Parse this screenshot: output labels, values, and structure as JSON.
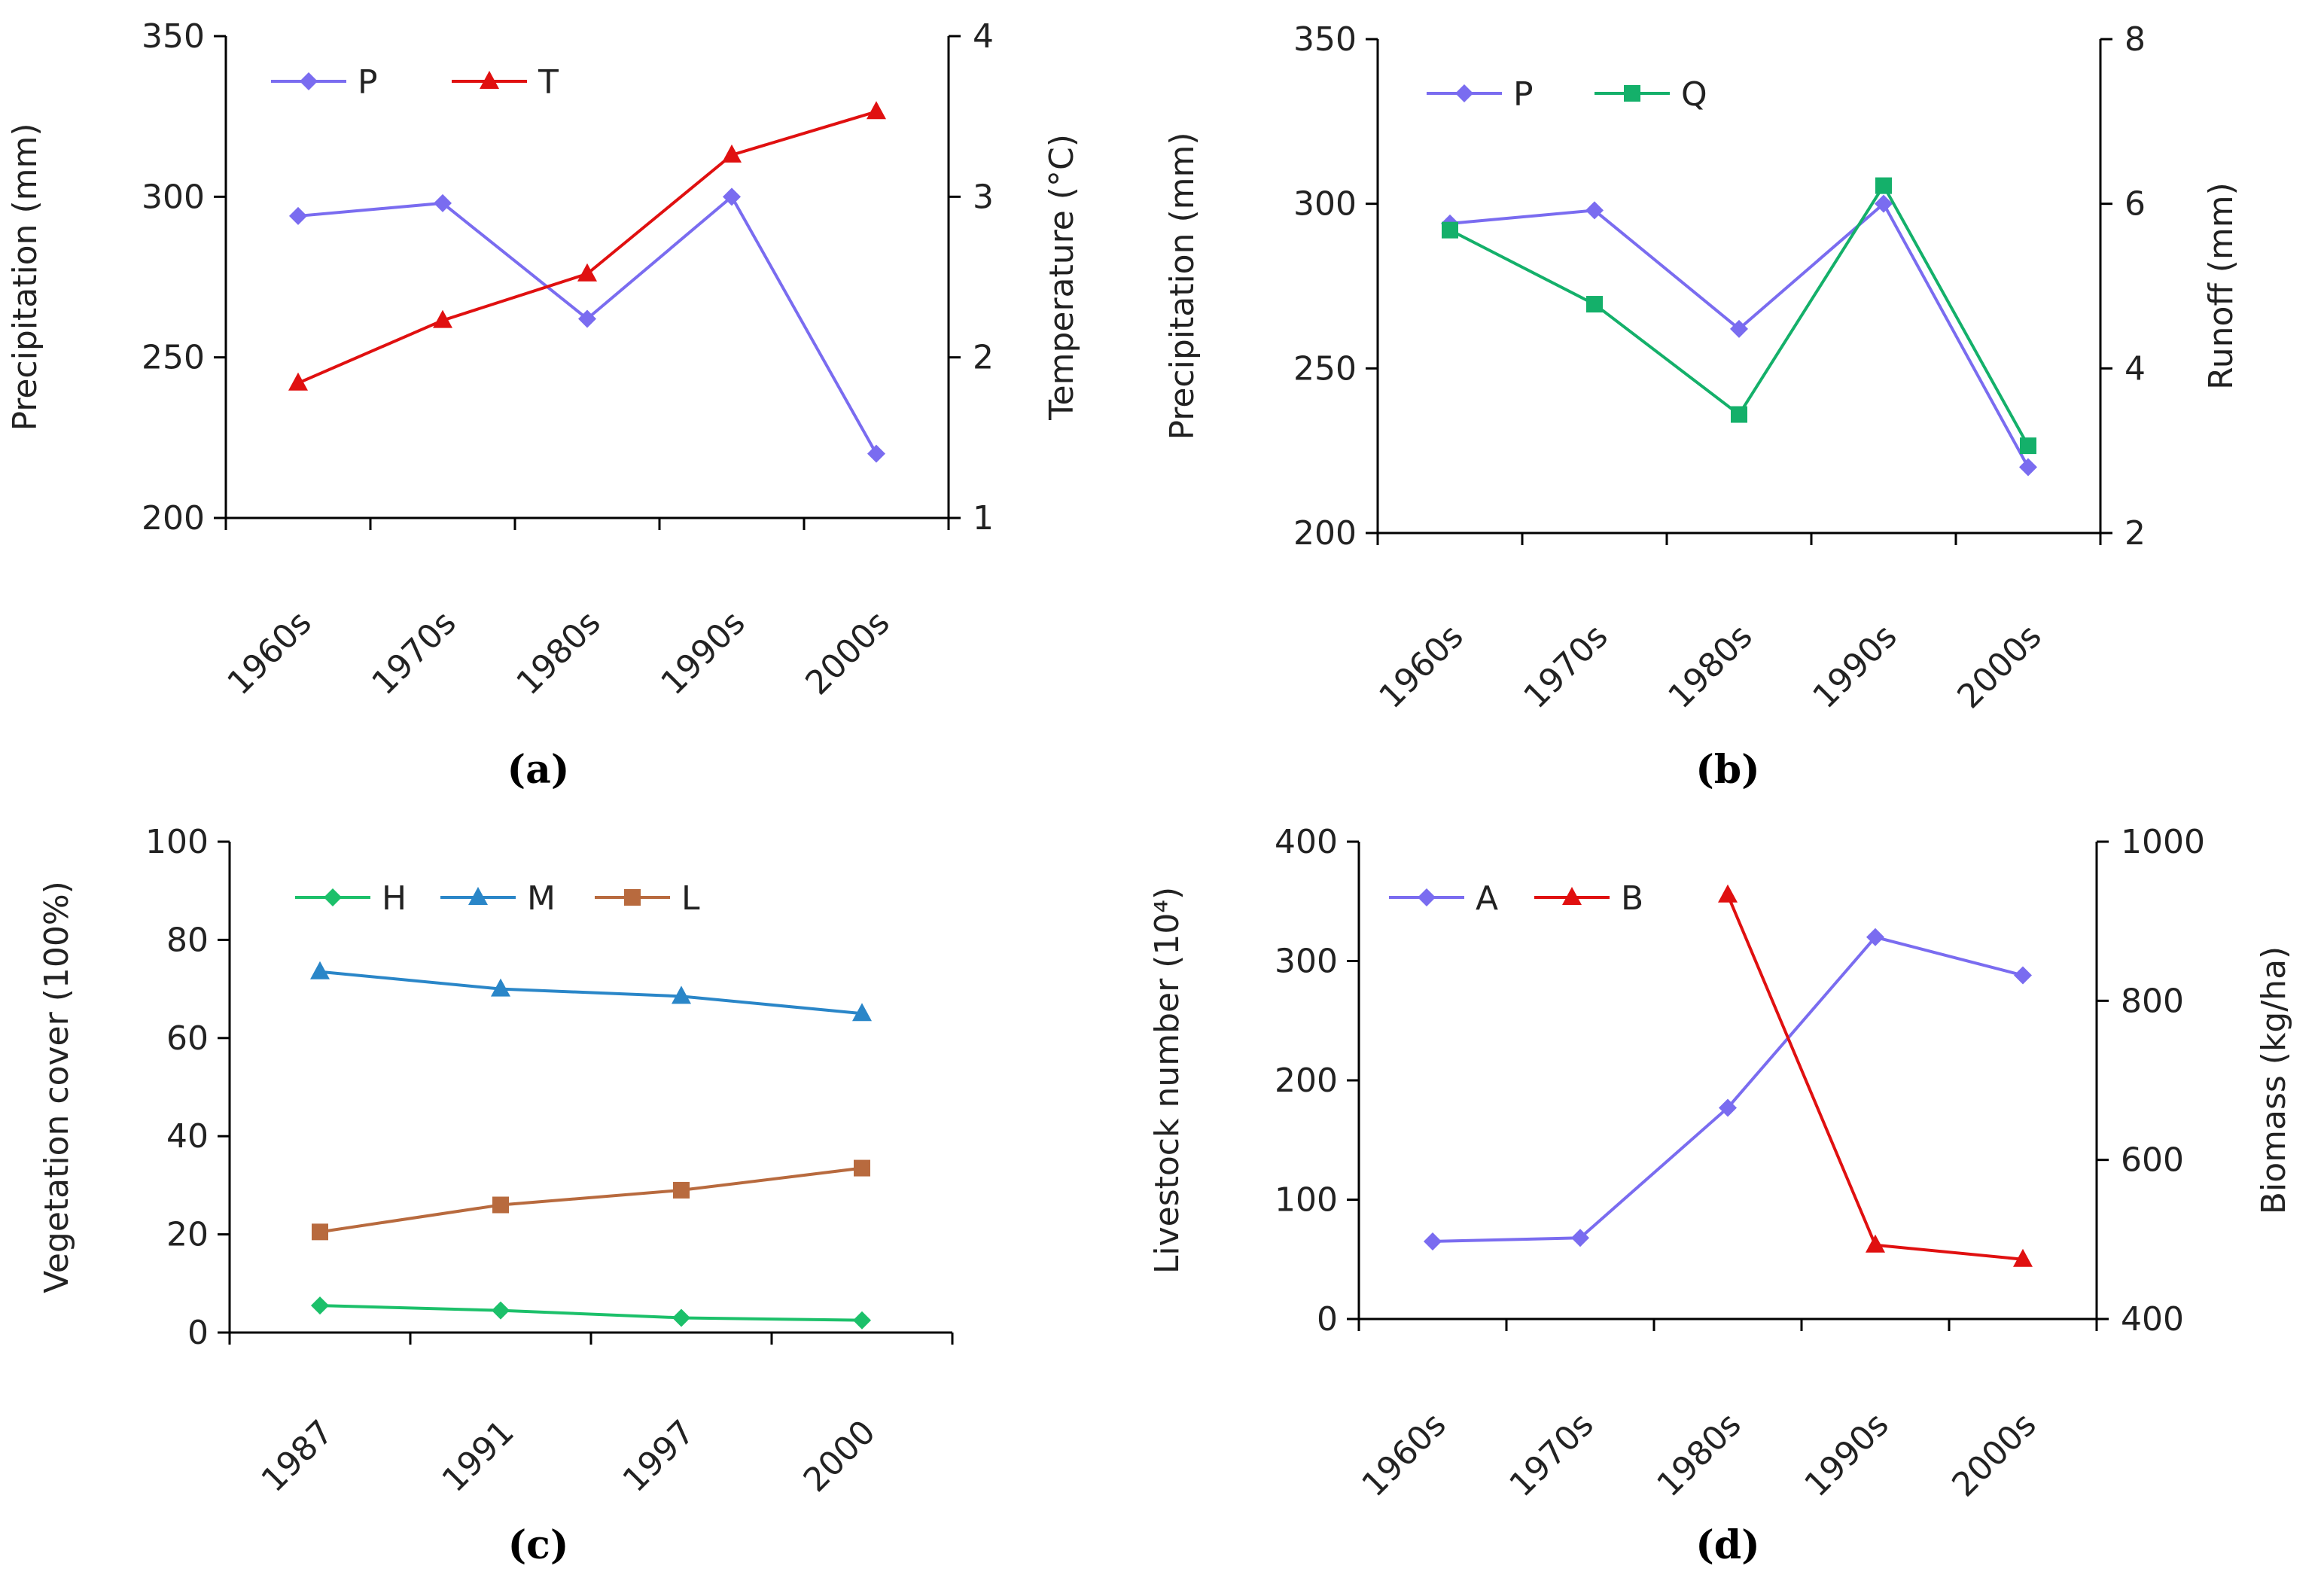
{
  "chart_data": [
    {
      "panel": "(a)",
      "type": "line",
      "categories": [
        "1960s",
        "1970s",
        "1980s",
        "1990s",
        "2000s"
      ],
      "y_left": {
        "label": "Precipitation (mm)",
        "range": [
          200,
          350
        ],
        "ticks": [
          200,
          250,
          300,
          350
        ]
      },
      "y_right": {
        "label": "Temperature  (°C)",
        "range": [
          1,
          4
        ],
        "ticks": [
          1,
          2,
          3,
          4
        ]
      },
      "series": [
        {
          "name": "P",
          "axis": "left",
          "color": "#7a6cf0",
          "marker": "diamond",
          "values": [
            294,
            298,
            262,
            300,
            220
          ]
        },
        {
          "name": "T",
          "axis": "right",
          "color": "#e01010",
          "marker": "triangle",
          "values": [
            1.84,
            2.23,
            2.52,
            3.26,
            3.53
          ]
        }
      ]
    },
    {
      "panel": "(b)",
      "type": "line",
      "categories": [
        "1960s",
        "1970s",
        "1980s",
        "1990s",
        "2000s"
      ],
      "y_left": {
        "label": "Precipitation (mm)",
        "range": [
          200,
          350
        ],
        "ticks": [
          200,
          250,
          300,
          350
        ]
      },
      "y_right": {
        "label": "Runoff (mm)",
        "range": [
          2,
          8
        ],
        "ticks": [
          2,
          4,
          6,
          8
        ]
      },
      "series": [
        {
          "name": "P",
          "axis": "left",
          "color": "#7a6cf0",
          "marker": "diamond",
          "values": [
            294,
            298,
            262,
            300,
            220
          ]
        },
        {
          "name": "Q",
          "axis": "right",
          "color": "#14b06a",
          "marker": "square",
          "values": [
            5.68,
            4.78,
            3.44,
            6.22,
            3.06
          ]
        }
      ]
    },
    {
      "panel": "(c)",
      "type": "line",
      "categories": [
        "1987",
        "1991",
        "1997",
        "2000"
      ],
      "y_left": {
        "label": "Vegetation  cover (100%)",
        "range": [
          0,
          100
        ],
        "ticks": [
          0,
          20,
          40,
          60,
          80,
          100
        ]
      },
      "series": [
        {
          "name": "H",
          "axis": "left",
          "color": "#1cc06a",
          "marker": "diamond",
          "values": [
            5.5,
            4.5,
            3.0,
            2.5
          ]
        },
        {
          "name": "M",
          "axis": "left",
          "color": "#2a86c8",
          "marker": "triangle",
          "values": [
            73.5,
            70,
            68.5,
            65
          ]
        },
        {
          "name": "L",
          "axis": "left",
          "color": "#b86a3e",
          "marker": "square",
          "values": [
            20.5,
            26,
            29,
            33.5
          ]
        }
      ]
    },
    {
      "panel": "(d)",
      "type": "line",
      "categories": [
        "1960s",
        "1970s",
        "1980s",
        "1990s",
        "2000s"
      ],
      "y_left": {
        "label": "Livestock number (10⁴)",
        "range": [
          0,
          400
        ],
        "ticks": [
          0,
          100,
          200,
          300,
          400
        ]
      },
      "y_right": {
        "label": "Biomass (kg/ha)",
        "range": [
          400,
          1000
        ],
        "ticks": [
          400,
          600,
          800,
          1000
        ]
      },
      "series": [
        {
          "name": "A",
          "axis": "left",
          "color": "#7a6cf0",
          "marker": "diamond",
          "values": [
            65,
            68,
            177,
            320,
            288
          ]
        },
        {
          "name": "B",
          "axis": "right",
          "color": "#e01010",
          "marker": "triangle",
          "values": [
            null,
            null,
            933,
            493,
            475
          ]
        }
      ]
    }
  ]
}
